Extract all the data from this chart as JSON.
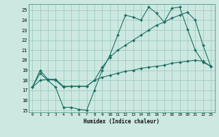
{
  "xlabel": "Humidex (Indice chaleur)",
  "xlim": [
    -0.5,
    23.5
  ],
  "ylim": [
    14.8,
    25.6
  ],
  "yticks": [
    15,
    16,
    17,
    18,
    19,
    20,
    21,
    22,
    23,
    24,
    25
  ],
  "xticks": [
    0,
    1,
    2,
    3,
    4,
    5,
    6,
    7,
    8,
    9,
    10,
    11,
    12,
    13,
    14,
    15,
    16,
    17,
    18,
    19,
    20,
    21,
    22,
    23
  ],
  "bg_color": "#cce8e0",
  "line_color": "#1a6e64",
  "line1": {
    "x": [
      0,
      1,
      2,
      3,
      4,
      5,
      6,
      7,
      8,
      9,
      10,
      11,
      12,
      13,
      14,
      15,
      16,
      17,
      18,
      19,
      20,
      21,
      22,
      23
    ],
    "y": [
      17.3,
      18.7,
      18.0,
      17.3,
      15.3,
      15.3,
      15.1,
      15.0,
      17.0,
      19.0,
      20.5,
      22.5,
      24.5,
      24.3,
      24.0,
      25.3,
      24.7,
      23.8,
      25.2,
      25.3,
      23.1,
      21.0,
      19.8,
      19.4
    ]
  },
  "line2": {
    "x": [
      0,
      1,
      2,
      3,
      4,
      5,
      6,
      7,
      8,
      9,
      10,
      11,
      12,
      13,
      14,
      15,
      16,
      17,
      18,
      19,
      20,
      21,
      22,
      23
    ],
    "y": [
      17.3,
      19.0,
      18.1,
      18.0,
      17.3,
      17.4,
      17.4,
      17.4,
      18.0,
      19.3,
      20.3,
      21.0,
      21.5,
      22.0,
      22.5,
      23.0,
      23.5,
      23.8,
      24.2,
      24.5,
      24.8,
      24.0,
      21.5,
      19.4
    ]
  },
  "line3": {
    "x": [
      0,
      1,
      2,
      3,
      4,
      5,
      6,
      7,
      8,
      9,
      10,
      11,
      12,
      13,
      14,
      15,
      16,
      17,
      18,
      19,
      20,
      21,
      22,
      23
    ],
    "y": [
      17.3,
      18.0,
      18.1,
      18.1,
      17.4,
      17.4,
      17.4,
      17.4,
      18.0,
      18.3,
      18.5,
      18.7,
      18.9,
      19.0,
      19.2,
      19.3,
      19.4,
      19.5,
      19.7,
      19.8,
      19.9,
      20.0,
      19.9,
      19.4
    ]
  }
}
